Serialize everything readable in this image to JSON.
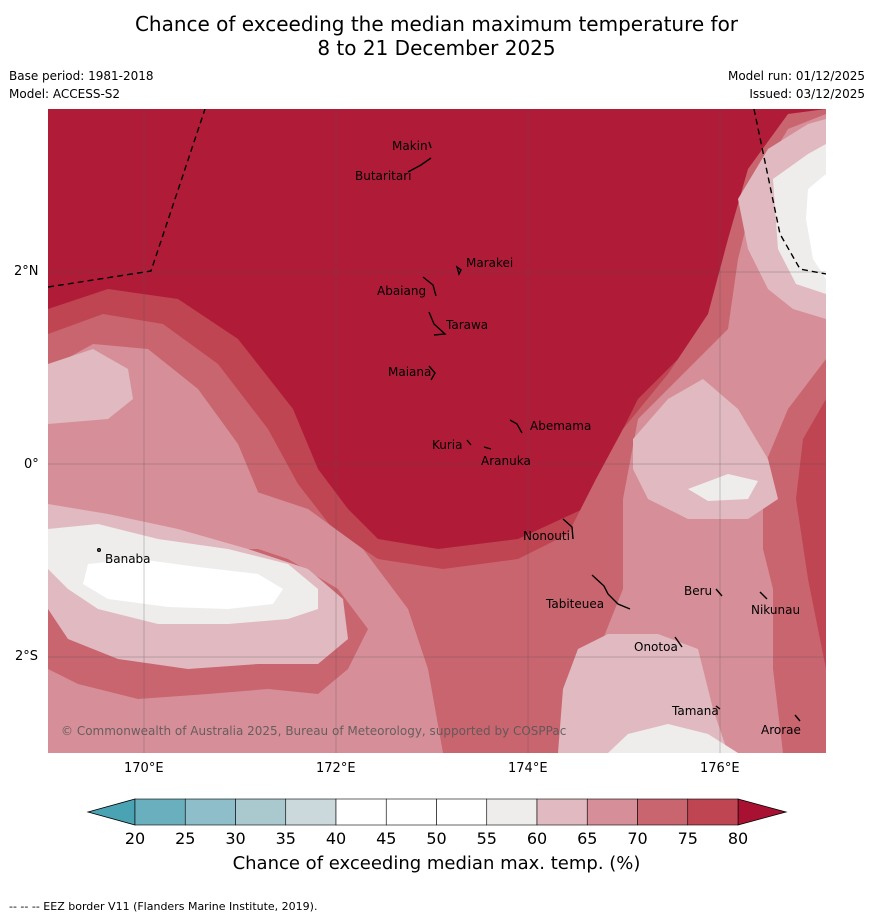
{
  "title_line1": "Chance of exceeding the median maximum temperature for",
  "title_line2": "8 to 21 December 2025",
  "meta_left": [
    "Base period: 1981-2018",
    "Model: ACCESS-S2"
  ],
  "meta_right": [
    "Model run: 01/12/2025",
    "Issued: 03/12/2025"
  ],
  "lat_labels": [
    "2°N",
    "0°",
    "2°S"
  ],
  "lon_labels": [
    "170°E",
    "172°E",
    "174°E",
    "176°E"
  ],
  "islands": [
    "Makin",
    "Butaritari",
    "Marakei",
    "Abaiang",
    "Tarawa",
    "Maiana",
    "Abemama",
    "Kuria",
    "Aranuka",
    "Nonouti",
    "Banaba",
    "Tabiteuea",
    "Beru",
    "Nikunau",
    "Onotoa",
    "Tamana",
    "Arorae"
  ],
  "copyright": "© Commonwealth of Australia 2025, Bureau of Meteorology, supported by COSPPac",
  "colorbar": {
    "ticks": [
      "20",
      "25",
      "30",
      "35",
      "40",
      "45",
      "50",
      "55",
      "60",
      "65",
      "70",
      "75",
      "80"
    ],
    "colors": [
      "#6aafbe",
      "#8dbec9",
      "#a9c9cf",
      "#ccd9dc",
      "#e9f0f2",
      "#ffffff",
      "#ffffff",
      "#eeedec",
      "#e0bac0",
      "#d68f98",
      "#c9656f",
      "#bf4553",
      "#b01c38"
    ],
    "label": "Chance of exceeding median max. temp. (%)"
  },
  "footer": "--  --  -- EEZ border V11 (Flanders Marine Institute, 2019)."
}
